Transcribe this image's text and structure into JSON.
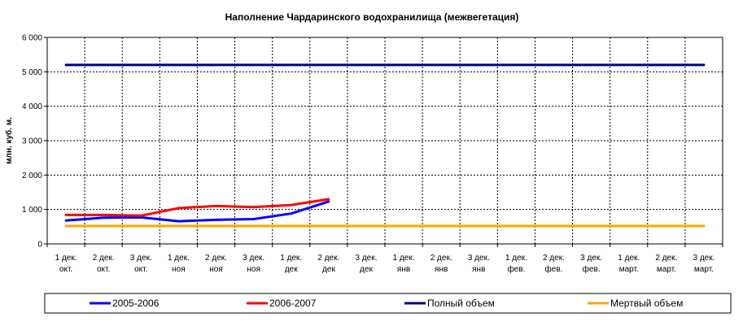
{
  "chart_data": {
    "type": "line",
    "title": "Наполнение Чардаринского водохранилища (межвегетация)",
    "ylabel": "млн. куб. м.",
    "xlabel": "",
    "ylim": [
      0,
      6000
    ],
    "y_ticks": [
      "0",
      "1 000",
      "2 000",
      "3 000",
      "4 000",
      "5 000",
      "6 000"
    ],
    "grid": true,
    "legend_position": "bottom",
    "categories": [
      [
        "1 дек.",
        "окт."
      ],
      [
        "2 дек.",
        "окт."
      ],
      [
        "3 дек.",
        "окт."
      ],
      [
        "1 дек.",
        "ноя"
      ],
      [
        "2 дек.",
        "ноя"
      ],
      [
        "3 дек.",
        "ноя"
      ],
      [
        "1 дек.",
        "дек"
      ],
      [
        "2 дек.",
        "дек"
      ],
      [
        "3 дек.",
        "дек"
      ],
      [
        "1 дек.",
        "янв"
      ],
      [
        "2 дек.",
        "янв"
      ],
      [
        "3 дек.",
        "янв"
      ],
      [
        "1 дек.",
        "фев."
      ],
      [
        "2 дек.",
        "фев."
      ],
      [
        "3 дек.",
        "фев."
      ],
      [
        "1 дек.",
        "март."
      ],
      [
        "2 дек.",
        "март."
      ],
      [
        "3 дек.",
        "март."
      ]
    ],
    "series": [
      {
        "name": "2005-2006",
        "color": "#0000ff",
        "values": [
          680,
          760,
          770,
          660,
          700,
          720,
          880,
          1230,
          null,
          null,
          null,
          null,
          null,
          null,
          null,
          null,
          null,
          null
        ]
      },
      {
        "name": "2006-2007",
        "color": "#ff0000",
        "values": [
          840,
          840,
          820,
          1040,
          1100,
          1070,
          1130,
          1300,
          null,
          null,
          null,
          null,
          null,
          null,
          null,
          null,
          null,
          null
        ]
      },
      {
        "name": "Полный объем",
        "color": "#000080",
        "values": [
          5200,
          5200,
          5200,
          5200,
          5200,
          5200,
          5200,
          5200,
          5200,
          5200,
          5200,
          5200,
          5200,
          5200,
          5200,
          5200,
          5200,
          5200
        ]
      },
      {
        "name": "Мертвый объем",
        "color": "#ffa500",
        "values": [
          520,
          520,
          520,
          520,
          520,
          520,
          520,
          520,
          520,
          520,
          520,
          520,
          520,
          520,
          520,
          520,
          520,
          520
        ]
      }
    ]
  }
}
